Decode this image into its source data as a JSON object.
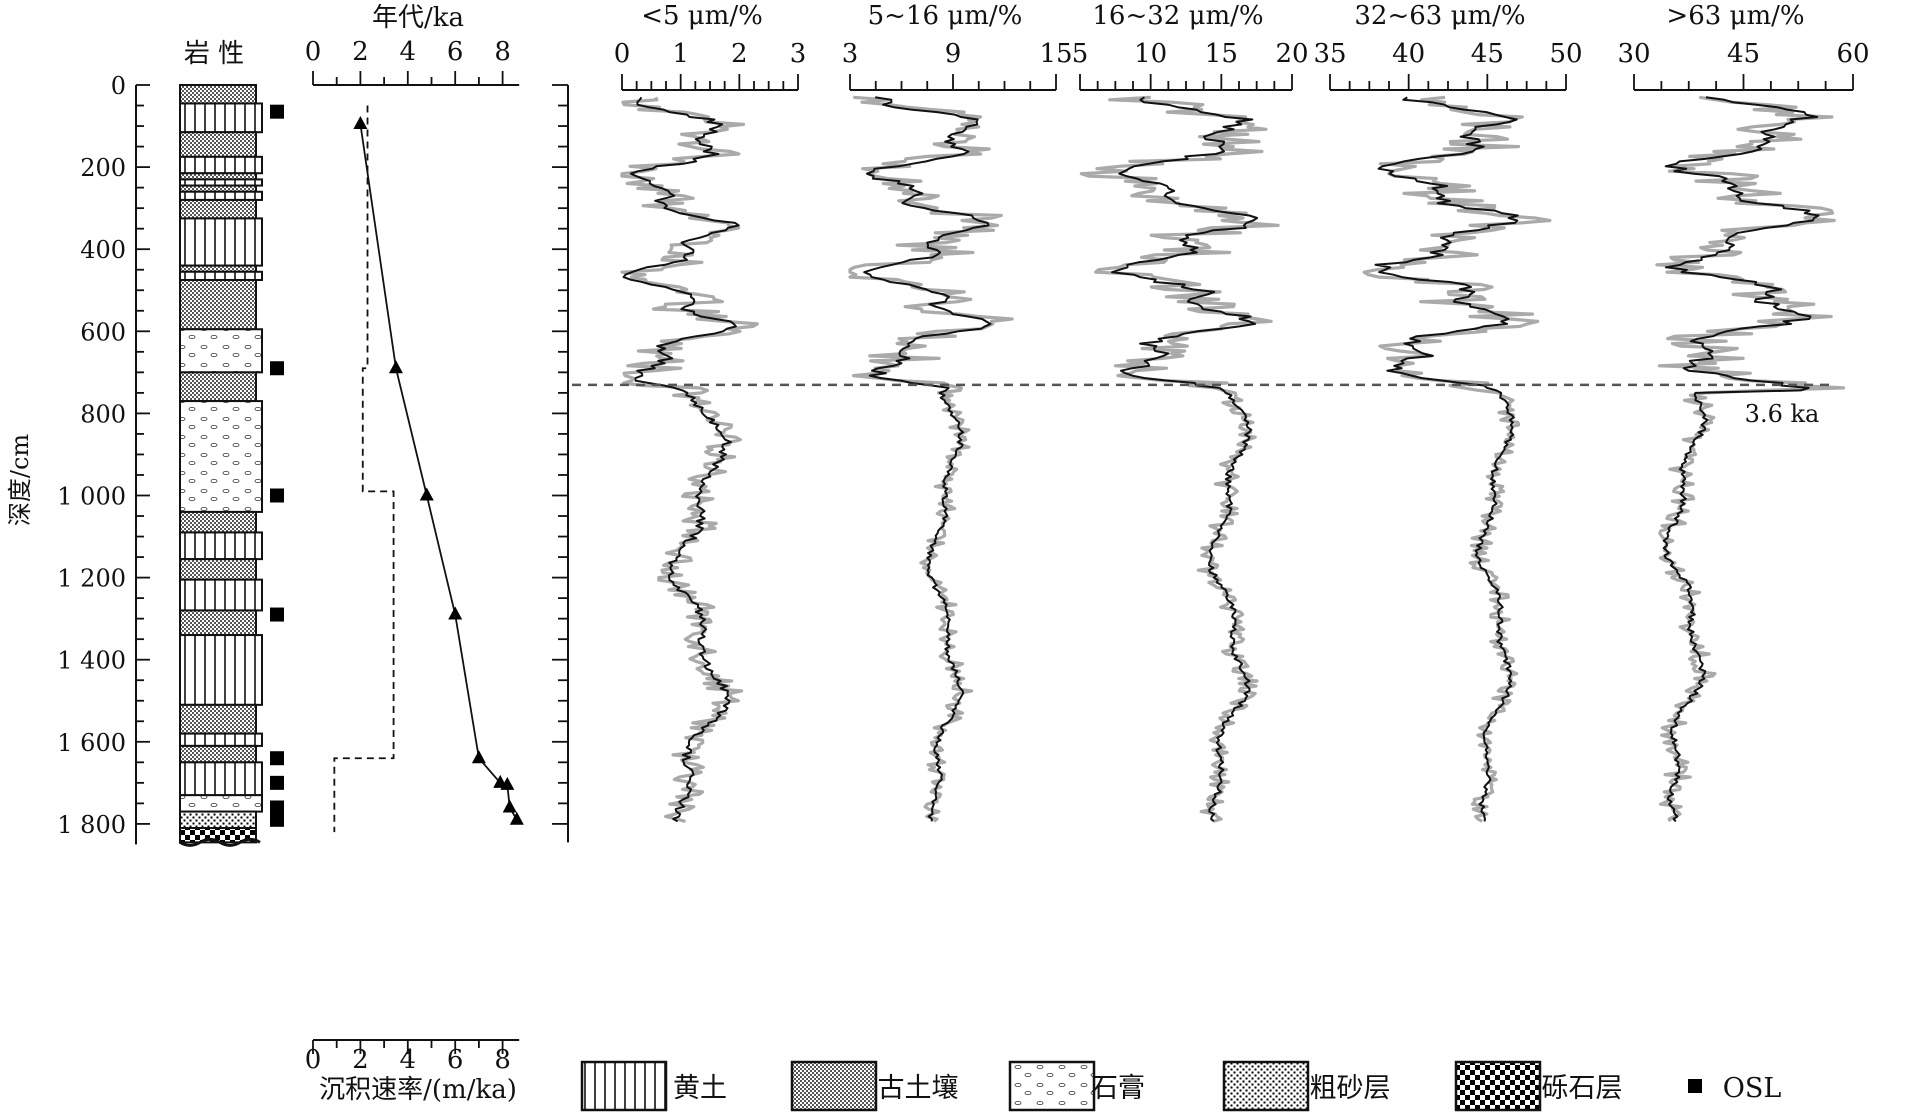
{
  "chart_data": {
    "type": "line",
    "y_axis": {
      "label": "深度/cm",
      "range": [
        0,
        1850
      ],
      "ticks": [
        "0",
        "200",
        "400",
        "600",
        "800",
        "1 000",
        "1 200",
        "1 400",
        "1 600",
        "1 800"
      ],
      "tick_values": [
        0,
        200,
        400,
        600,
        800,
        1000,
        1200,
        1400,
        1600,
        1800
      ]
    },
    "lithology": {
      "title": "岩 性",
      "layers": [
        {
          "top": 0,
          "bottom": 45,
          "type": "paleosol"
        },
        {
          "top": 45,
          "bottom": 115,
          "type": "loess"
        },
        {
          "top": 115,
          "bottom": 175,
          "type": "paleosol"
        },
        {
          "top": 175,
          "bottom": 215,
          "type": "loess"
        },
        {
          "top": 215,
          "bottom": 230,
          "type": "paleosol"
        },
        {
          "top": 230,
          "bottom": 245,
          "type": "loess"
        },
        {
          "top": 245,
          "bottom": 260,
          "type": "paleosol"
        },
        {
          "top": 260,
          "bottom": 280,
          "type": "loess"
        },
        {
          "top": 280,
          "bottom": 325,
          "type": "paleosol"
        },
        {
          "top": 325,
          "bottom": 440,
          "type": "loess"
        },
        {
          "top": 440,
          "bottom": 455,
          "type": "paleosol"
        },
        {
          "top": 455,
          "bottom": 475,
          "type": "loess"
        },
        {
          "top": 475,
          "bottom": 595,
          "type": "paleosol"
        },
        {
          "top": 595,
          "bottom": 700,
          "type": "gypsum"
        },
        {
          "top": 700,
          "bottom": 770,
          "type": "paleosol"
        },
        {
          "top": 770,
          "bottom": 1040,
          "type": "gypsum"
        },
        {
          "top": 1040,
          "bottom": 1090,
          "type": "paleosol"
        },
        {
          "top": 1090,
          "bottom": 1155,
          "type": "loess"
        },
        {
          "top": 1155,
          "bottom": 1205,
          "type": "paleosol"
        },
        {
          "top": 1205,
          "bottom": 1280,
          "type": "loess"
        },
        {
          "top": 1280,
          "bottom": 1340,
          "type": "paleosol"
        },
        {
          "top": 1340,
          "bottom": 1510,
          "type": "loess"
        },
        {
          "top": 1510,
          "bottom": 1580,
          "type": "paleosol"
        },
        {
          "top": 1580,
          "bottom": 1610,
          "type": "loess"
        },
        {
          "top": 1610,
          "bottom": 1650,
          "type": "paleosol"
        },
        {
          "top": 1650,
          "bottom": 1730,
          "type": "loess"
        },
        {
          "top": 1730,
          "bottom": 1770,
          "type": "gypsum"
        },
        {
          "top": 1770,
          "bottom": 1810,
          "type": "coarse_sand"
        },
        {
          "top": 1810,
          "bottom": 1845,
          "type": "gravel"
        }
      ],
      "osl_depths": [
        65,
        690,
        1000,
        1290,
        1640,
        1700,
        1760,
        1790
      ]
    },
    "age_panel": {
      "top_label": "年代/ka",
      "top_ticks": [
        "0",
        "2",
        "4",
        "6",
        "8"
      ],
      "top_tick_values": [
        0,
        2,
        4,
        6,
        8
      ],
      "bottom_label": "沉积速率/(m/ka)",
      "bottom_ticks": [
        "0",
        "2",
        "4",
        "6",
        "8"
      ],
      "bottom_tick_values": [
        0,
        2,
        4,
        6,
        8
      ],
      "age_points": [
        {
          "depth": 95,
          "age": 2.0
        },
        {
          "depth": 690,
          "age": 3.5
        },
        {
          "depth": 1000,
          "age": 4.8
        },
        {
          "depth": 1290,
          "age": 6.0
        },
        {
          "depth": 1640,
          "age": 7.0
        },
        {
          "depth": 1700,
          "age": 7.9
        },
        {
          "depth": 1705,
          "age": 8.2
        },
        {
          "depth": 1760,
          "age": 8.3
        },
        {
          "depth": 1790,
          "age": 8.6
        }
      ],
      "sedimentation_rate": [
        {
          "top": 50,
          "bottom": 690,
          "rate": 2.3
        },
        {
          "top": 690,
          "bottom": 990,
          "rate": 2.1
        },
        {
          "top": 990,
          "bottom": 1640,
          "rate": 3.4
        },
        {
          "top": 1640,
          "bottom": 1820,
          "rate": 0.9
        }
      ]
    },
    "grain_size_series": [
      {
        "name": "<5 μm/%",
        "ticks": [
          "0",
          "1",
          "2",
          "3"
        ],
        "tick_values": [
          0,
          1,
          2,
          3
        ],
        "range": [
          0,
          3
        ],
        "upper_mean": 1.0,
        "upper_amp": 0.8,
        "lower_mean": 1.3,
        "lower_amp": 0.45
      },
      {
        "name": "5~16 μm/%",
        "ticks": [
          "3",
          "9",
          "15"
        ],
        "tick_values": [
          3,
          9,
          15
        ],
        "range": [
          3,
          15
        ],
        "upper_mean": 7.5,
        "upper_amp": 3.2,
        "lower_mean": 8.5,
        "lower_amp": 0.9
      },
      {
        "name": "16~32 μm/%",
        "ticks": [
          "5",
          "10",
          "15",
          "20"
        ],
        "tick_values": [
          5,
          10,
          15,
          20
        ],
        "range": [
          5,
          20
        ],
        "upper_mean": 12.5,
        "upper_amp": 4.5,
        "lower_mean": 15.5,
        "lower_amp": 1.3
      },
      {
        "name": "32~63 μm/%",
        "ticks": [
          "35",
          "40",
          "45",
          "50"
        ],
        "tick_values": [
          35,
          40,
          45,
          50
        ],
        "range": [
          35,
          50
        ],
        "upper_mean": 42.5,
        "upper_amp": 4.0,
        "lower_mean": 45.5,
        "lower_amp": 1.0
      },
      {
        "name": ">63 μm/%",
        "ticks": [
          "30",
          "45",
          "60"
        ],
        "tick_values": [
          30,
          45,
          60
        ],
        "range": [
          30,
          60
        ],
        "upper_mean": 45,
        "upper_amp": 9,
        "lower_mean": 37,
        "lower_amp": 2.5
      }
    ],
    "boundary": {
      "depth": 750,
      "label": "3.6 ka"
    },
    "legend": [
      {
        "key": "loess",
        "label": "黄土"
      },
      {
        "key": "paleosol",
        "label": "古土壤"
      },
      {
        "key": "gypsum",
        "label": "石膏"
      },
      {
        "key": "coarse_sand",
        "label": "粗砂层"
      },
      {
        "key": "gravel",
        "label": "砾石层"
      },
      {
        "key": "osl",
        "label": "OSL"
      }
    ]
  }
}
